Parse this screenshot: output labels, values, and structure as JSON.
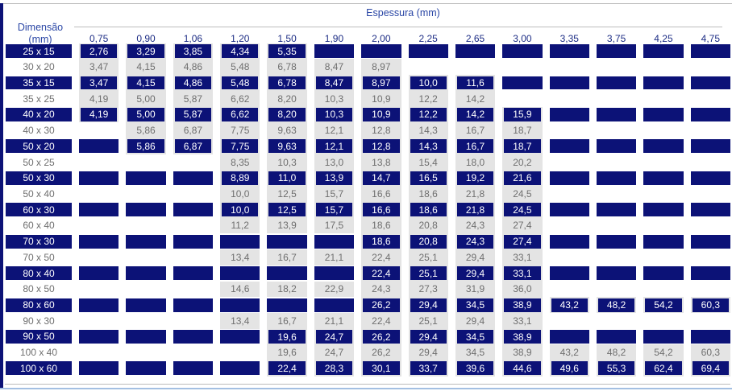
{
  "colors": {
    "navy": "#0c1277",
    "header_blue": "#2a46a5",
    "colhead_blue": "#1d2d85",
    "cell_gray": "#e4e4e4",
    "muted_text": "#6f6f6f",
    "rule_gray": "#bcbcbc",
    "bottom_blue": "#a3bfe2"
  },
  "header": {
    "row_header_line1": "Dimensão",
    "row_header_line2": "(mm)",
    "col_group_title": "Espessura (mm)"
  },
  "table": {
    "thickness_columns": [
      "0,75",
      "0,90",
      "1,06",
      "1,20",
      "1,50",
      "1,90",
      "2,00",
      "2,25",
      "2,65",
      "3,00",
      "3,35",
      "3,75",
      "4,25",
      "4,75"
    ],
    "rows": [
      {
        "label": "25 x 15",
        "dark": true,
        "values": [
          "2,76",
          "3,29",
          "3,85",
          "4,34",
          "5,35",
          null,
          null,
          null,
          null,
          null,
          null,
          null,
          null,
          null
        ]
      },
      {
        "label": "30 x 20",
        "dark": false,
        "values": [
          "3,47",
          "4,15",
          "4,86",
          "5,48",
          "6,78",
          "8,47",
          "8,97",
          null,
          null,
          null,
          null,
          null,
          null,
          null
        ]
      },
      {
        "label": "35 x 15",
        "dark": true,
        "values": [
          "3,47",
          "4,15",
          "4,86",
          "5,48",
          "6,78",
          "8,47",
          "8,97",
          "10,0",
          "11,6",
          null,
          null,
          null,
          null,
          null
        ]
      },
      {
        "label": "35 x 25",
        "dark": false,
        "values": [
          "4,19",
          "5,00",
          "5,87",
          "6,62",
          "8,20",
          "10,3",
          "10,9",
          "12,2",
          "14,2",
          null,
          null,
          null,
          null,
          null
        ]
      },
      {
        "label": "40 x 20",
        "dark": true,
        "values": [
          "4,19",
          "5,00",
          "5,87",
          "6,62",
          "8,20",
          "10,3",
          "10,9",
          "12,2",
          "14,2",
          "15,9",
          null,
          null,
          null,
          null
        ]
      },
      {
        "label": "40 x 30",
        "dark": false,
        "values": [
          null,
          "5,86",
          "6,87",
          "7,75",
          "9,63",
          "12,1",
          "12,8",
          "14,3",
          "16,7",
          "18,7",
          null,
          null,
          null,
          null
        ]
      },
      {
        "label": "50 x 20",
        "dark": true,
        "values": [
          null,
          "5,86",
          "6,87",
          "7,75",
          "9,63",
          "12,1",
          "12,8",
          "14,3",
          "16,7",
          "18,7",
          null,
          null,
          null,
          null
        ]
      },
      {
        "label": "50 x 25",
        "dark": false,
        "values": [
          null,
          null,
          null,
          "8,35",
          "10,3",
          "13,0",
          "13,8",
          "15,4",
          "18,0",
          "20,2",
          null,
          null,
          null,
          null
        ]
      },
      {
        "label": "50 x 30",
        "dark": true,
        "values": [
          null,
          null,
          null,
          "8,89",
          "11,0",
          "13,9",
          "14,7",
          "16,5",
          "19,2",
          "21,6",
          null,
          null,
          null,
          null
        ]
      },
      {
        "label": "50 x 40",
        "dark": false,
        "values": [
          null,
          null,
          null,
          "10,0",
          "12,5",
          "15,7",
          "16,6",
          "18,6",
          "21,8",
          "24,5",
          null,
          null,
          null,
          null
        ]
      },
      {
        "label": "60 x 30",
        "dark": true,
        "values": [
          null,
          null,
          null,
          "10,0",
          "12,5",
          "15,7",
          "16,6",
          "18,6",
          "21,8",
          "24,5",
          null,
          null,
          null,
          null
        ]
      },
      {
        "label": "60 x 40",
        "dark": false,
        "values": [
          null,
          null,
          null,
          "11,2",
          "13,9",
          "17,5",
          "18,6",
          "20,8",
          "24,3",
          "27,4",
          null,
          null,
          null,
          null
        ]
      },
      {
        "label": "70 x 30",
        "dark": true,
        "values": [
          null,
          null,
          null,
          null,
          null,
          null,
          "18,6",
          "20,8",
          "24,3",
          "27,4",
          null,
          null,
          null,
          null
        ]
      },
      {
        "label": "70 x 50",
        "dark": false,
        "values": [
          null,
          null,
          null,
          "13,4",
          "16,7",
          "21,1",
          "22,4",
          "25,1",
          "29,4",
          "33,1",
          null,
          null,
          null,
          null
        ]
      },
      {
        "label": "80 x 40",
        "dark": true,
        "values": [
          null,
          null,
          null,
          null,
          null,
          null,
          "22,4",
          "25,1",
          "29,4",
          "33,1",
          null,
          null,
          null,
          null
        ]
      },
      {
        "label": "80 x 50",
        "dark": false,
        "values": [
          null,
          null,
          null,
          "14,6",
          "18,2",
          "22,9",
          "24,3",
          "27,3",
          "31,9",
          "36,0",
          null,
          null,
          null,
          null
        ]
      },
      {
        "label": "80 x 60",
        "dark": true,
        "values": [
          null,
          null,
          null,
          null,
          null,
          null,
          "26,2",
          "29,4",
          "34,5",
          "38,9",
          "43,2",
          "48,2",
          "54,2",
          "60,3"
        ]
      },
      {
        "label": "90 x 30",
        "dark": false,
        "values": [
          null,
          null,
          null,
          "13,4",
          "16,7",
          "21,1",
          "22,4",
          "25,1",
          "29,4",
          "33,1",
          null,
          null,
          null,
          null
        ]
      },
      {
        "label": "90 x 50",
        "dark": true,
        "values": [
          null,
          null,
          null,
          null,
          "19,6",
          "24,7",
          "26,2",
          "29,4",
          "34,5",
          "38,9",
          null,
          null,
          null,
          null
        ]
      },
      {
        "label": "100 x 40",
        "dark": false,
        "values": [
          null,
          null,
          null,
          null,
          "19,6",
          "24,7",
          "26,2",
          "29,4",
          "34,5",
          "38,9",
          "43,2",
          "48,2",
          "54,2",
          "60,3"
        ]
      },
      {
        "label": "100 x 60",
        "dark": true,
        "values": [
          null,
          null,
          null,
          null,
          "22,4",
          "28,3",
          "30,1",
          "33,7",
          "39,6",
          "44,6",
          "49,6",
          "55,3",
          "62,4",
          "69,4"
        ]
      }
    ]
  }
}
